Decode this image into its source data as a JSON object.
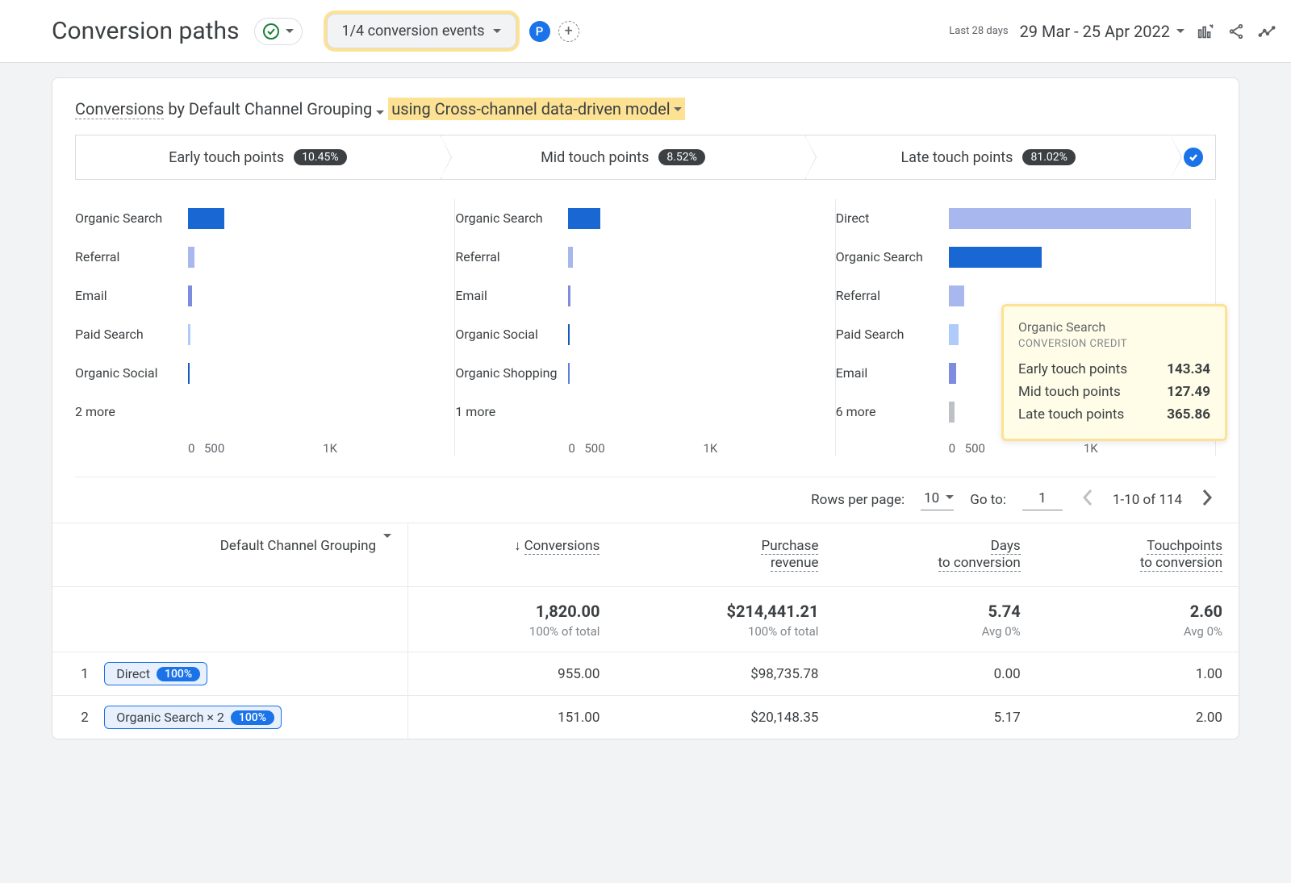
{
  "header": {
    "title": "Conversion paths",
    "events_selector": "1/4 conversion events",
    "p_badge": "P",
    "date_label": "Last 28 days",
    "date_range": "29 Mar - 25 Apr 2022"
  },
  "card": {
    "title_conversions": "Conversions",
    "title_by": " by Default Channel Grouping",
    "title_model": "using Cross-channel data-driven model"
  },
  "stages": [
    {
      "label": "Early touch points",
      "pct": "10.45%"
    },
    {
      "label": "Mid touch points",
      "pct": "8.52%"
    },
    {
      "label": "Late touch points",
      "pct": "81.02%"
    }
  ],
  "chart": {
    "axis_max": 1000,
    "axis_ticks": [
      "0",
      "500",
      "1K"
    ],
    "colors": {
      "Organic Search": "#1967d2",
      "Referral": "#a8b7ed",
      "Email": "#7e8ce0",
      "Paid Search": "#aecbfa",
      "Organic Social": "#185abc",
      "Organic Shopping": "#5b80d8",
      "Direct": "#a8b7ed",
      "more": "#bdc1c6"
    },
    "columns": [
      {
        "rows": [
          {
            "label": "Organic Search",
            "value": 143
          },
          {
            "label": "Referral",
            "value": 25
          },
          {
            "label": "Email",
            "value": 15
          },
          {
            "label": "Paid Search",
            "value": 8
          },
          {
            "label": "Organic Social",
            "value": 5
          },
          {
            "label": "2 more",
            "value": 0,
            "more": true
          }
        ]
      },
      {
        "rows": [
          {
            "label": "Organic Search",
            "value": 127
          },
          {
            "label": "Referral",
            "value": 18
          },
          {
            "label": "Email",
            "value": 8
          },
          {
            "label": "Organic Social",
            "value": 5
          },
          {
            "label": "Organic Shopping",
            "value": 4
          },
          {
            "label": "1 more",
            "value": 0,
            "more": true
          }
        ]
      },
      {
        "rows": [
          {
            "label": "Direct",
            "value": 955
          },
          {
            "label": "Organic Search",
            "value": 366
          },
          {
            "label": "Referral",
            "value": 60
          },
          {
            "label": "Paid Search",
            "value": 40
          },
          {
            "label": "Email",
            "value": 30
          },
          {
            "label": "6 more",
            "value": 22,
            "more": true
          }
        ]
      }
    ]
  },
  "tooltip": {
    "title": "Organic Search",
    "subtitle": "CONVERSION CREDIT",
    "rows": [
      {
        "label": "Early touch points",
        "value": "143.34"
      },
      {
        "label": "Mid touch points",
        "value": "127.49"
      },
      {
        "label": "Late touch points",
        "value": "365.86"
      }
    ]
  },
  "table_controls": {
    "rows_per_page_label": "Rows per page:",
    "rows_per_page_value": "10",
    "goto_label": "Go to:",
    "goto_value": "1",
    "range": "1-10 of 114"
  },
  "table": {
    "group_header": "Default Channel Grouping",
    "columns": [
      {
        "label": "Conversions",
        "sorted": true
      },
      {
        "label": "Purchase revenue"
      },
      {
        "label": "Days to conversion"
      },
      {
        "label": "Touchpoints to conversion"
      }
    ],
    "totals": {
      "values": [
        "1,820.00",
        "$214,441.21",
        "5.74",
        "2.60"
      ],
      "subs": [
        "100% of total",
        "100% of total",
        "Avg 0%",
        "Avg 0%"
      ]
    },
    "rows": [
      {
        "n": "1",
        "chip_label": "Direct",
        "chip_pct": "100%",
        "cells": [
          "955.00",
          "$98,735.78",
          "0.00",
          "1.00"
        ]
      },
      {
        "n": "2",
        "chip_label": "Organic Search × 2",
        "chip_pct": "100%",
        "cells": [
          "151.00",
          "$20,148.35",
          "5.17",
          "2.00"
        ]
      }
    ]
  }
}
